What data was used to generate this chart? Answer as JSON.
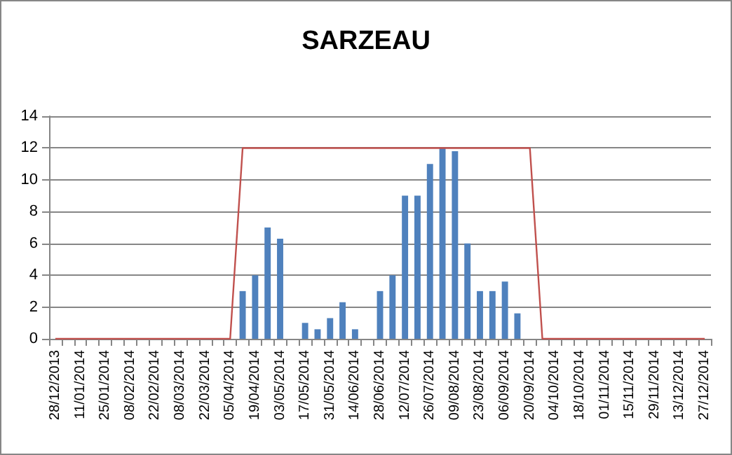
{
  "chart_data": {
    "type": "bar",
    "title": "SARZEAU",
    "categories": [
      "28/12/2013",
      null,
      "11/01/2014",
      null,
      "25/01/2014",
      null,
      "08/02/2014",
      null,
      "22/02/2014",
      null,
      "08/03/2014",
      null,
      "22/03/2014",
      null,
      "05/04/2014",
      null,
      "19/04/2014",
      null,
      "03/05/2014",
      null,
      "17/05/2014",
      null,
      "31/05/2014",
      null,
      "14/06/2014",
      null,
      "28/06/2014",
      null,
      "12/07/2014",
      null,
      "26/07/2014",
      null,
      "09/08/2014",
      null,
      "23/08/2014",
      null,
      "06/09/2014",
      null,
      "20/09/2014",
      null,
      "04/10/2014",
      null,
      "18/10/2014",
      null,
      "01/11/2014",
      null,
      "15/11/2014",
      null,
      "29/11/2014",
      null,
      "13/12/2014",
      null,
      "27/12/2014"
    ],
    "series": [
      {
        "color": "#4f81bd",
        "values": [
          null,
          null,
          null,
          null,
          null,
          null,
          null,
          null,
          null,
          null,
          null,
          null,
          null,
          null,
          null,
          3,
          4,
          7,
          6.3,
          null,
          1,
          0.6,
          1.3,
          2.3,
          0.6,
          null,
          3,
          4,
          9,
          9,
          11,
          12,
          11.8,
          6,
          3,
          3,
          3.6,
          1.6,
          null,
          null,
          null,
          null,
          null,
          null,
          null,
          null,
          null,
          null,
          null,
          null,
          null,
          null,
          null
        ]
      },
      {
        "type": "line",
        "color": "#c0504d",
        "marker": "none",
        "values": [
          0,
          0,
          0,
          0,
          0,
          0,
          0,
          0,
          0,
          0,
          0,
          0,
          0,
          0,
          0,
          12,
          12,
          12,
          12,
          12,
          12,
          12,
          12,
          12,
          12,
          12,
          12,
          12,
          12,
          12,
          12,
          12,
          12,
          12,
          12,
          12,
          12,
          12,
          12,
          0,
          0,
          0,
          0,
          0,
          0,
          0,
          0,
          0,
          0,
          0,
          0,
          0,
          0
        ]
      }
    ],
    "ylim": [
      0,
      14
    ],
    "yticks": [
      0,
      2,
      4,
      6,
      8,
      10,
      12,
      14
    ],
    "grid": "y"
  }
}
